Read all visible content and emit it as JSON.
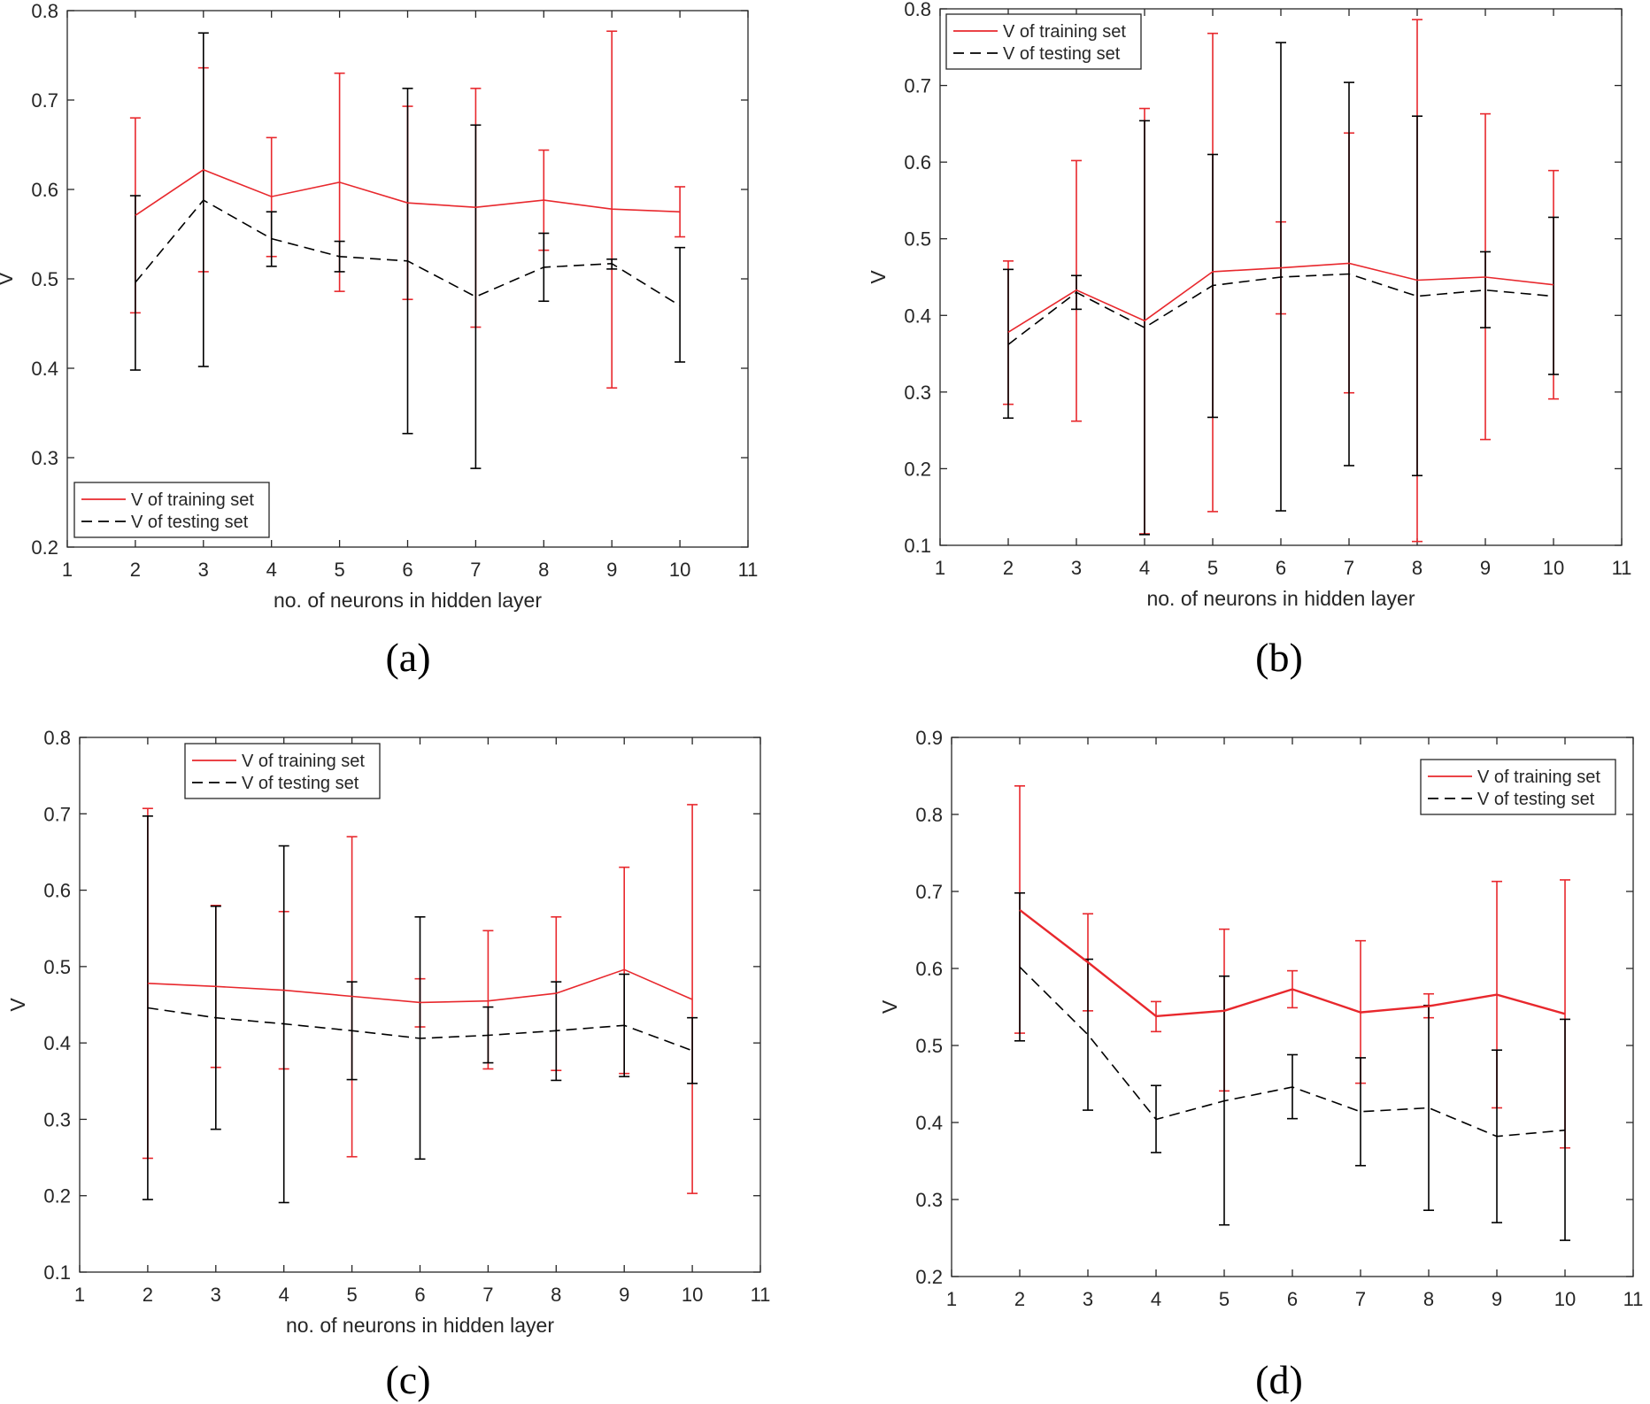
{
  "figure": {
    "panels": [
      {
        "caption": "(a)"
      },
      {
        "caption": "(b)"
      },
      {
        "caption": "(c)"
      },
      {
        "caption": "(d)"
      }
    ]
  },
  "colors": {
    "training": "#e8282d",
    "testing": "#000000",
    "axes": "#262626"
  },
  "chart_data": [
    {
      "type": "line",
      "caption": "(a)",
      "xlabel": "no. of neurons in hidden layer",
      "ylabel": "V",
      "xlim": [
        1,
        11
      ],
      "ylim": [
        0.2,
        0.8
      ],
      "xticks": [
        "1",
        "2",
        "3",
        "4",
        "5",
        "6",
        "7",
        "8",
        "9",
        "10",
        "11"
      ],
      "yticks": [
        "0.2",
        "0.3",
        "0.4",
        "0.5",
        "0.6",
        "0.7",
        "0.8"
      ],
      "legend": {
        "position": "bottom-left",
        "entries": [
          "V of training set",
          "V of testing set"
        ]
      },
      "x": [
        2,
        3,
        4,
        5,
        6,
        7,
        8,
        9,
        10
      ],
      "series": [
        {
          "name": "V of training set",
          "style": "solid",
          "values": [
            0.571,
            0.622,
            0.592,
            0.608,
            0.585,
            0.58,
            0.588,
            0.578,
            0.575
          ],
          "err_low": [
            0.462,
            0.508,
            0.525,
            0.486,
            0.477,
            0.446,
            0.532,
            0.378,
            0.547
          ],
          "err_high": [
            0.68,
            0.736,
            0.658,
            0.73,
            0.693,
            0.713,
            0.644,
            0.777,
            0.603
          ]
        },
        {
          "name": "V of testing set",
          "style": "dashed",
          "values": [
            0.496,
            0.588,
            0.545,
            0.525,
            0.52,
            0.48,
            0.513,
            0.517,
            0.47
          ],
          "err_low": [
            0.398,
            0.402,
            0.514,
            0.508,
            0.327,
            0.288,
            0.475,
            0.511,
            0.407
          ],
          "err_high": [
            0.593,
            0.775,
            0.575,
            0.542,
            0.713,
            0.672,
            0.551,
            0.522,
            0.535
          ]
        }
      ]
    },
    {
      "type": "line",
      "caption": "(b)",
      "xlabel": "no. of neurons in hidden layer",
      "ylabel": "V",
      "xlim": [
        1,
        11
      ],
      "ylim": [
        0.1,
        0.8
      ],
      "xticks": [
        "1",
        "2",
        "3",
        "4",
        "5",
        "6",
        "7",
        "8",
        "9",
        "10",
        "11"
      ],
      "yticks": [
        "0.1",
        "0.2",
        "0.3",
        "0.4",
        "0.5",
        "0.6",
        "0.7",
        "0.8"
      ],
      "legend": {
        "position": "top-left",
        "entries": [
          "V of training set",
          "V of testing set"
        ]
      },
      "x": [
        2,
        3,
        4,
        5,
        6,
        7,
        8,
        9,
        10
      ],
      "series": [
        {
          "name": "V of training set",
          "style": "solid",
          "values": [
            0.378,
            0.433,
            0.393,
            0.457,
            0.462,
            0.468,
            0.446,
            0.45,
            0.44
          ],
          "err_low": [
            0.284,
            0.262,
            0.115,
            0.144,
            0.402,
            0.299,
            0.105,
            0.238,
            0.291
          ],
          "err_high": [
            0.471,
            0.602,
            0.67,
            0.768,
            0.522,
            0.638,
            0.786,
            0.663,
            0.589
          ]
        },
        {
          "name": "V of testing set",
          "style": "dashed",
          "values": [
            0.362,
            0.43,
            0.384,
            0.439,
            0.45,
            0.454,
            0.425,
            0.433,
            0.425
          ],
          "err_low": [
            0.266,
            0.408,
            0.114,
            0.267,
            0.145,
            0.204,
            0.191,
            0.384,
            0.323
          ],
          "err_high": [
            0.46,
            0.452,
            0.654,
            0.61,
            0.756,
            0.704,
            0.66,
            0.483,
            0.528
          ]
        }
      ]
    },
    {
      "type": "line",
      "caption": "(c)",
      "xlabel": "no. of neurons in hidden layer",
      "ylabel": "V",
      "xlim": [
        1,
        11
      ],
      "ylim": [
        0.1,
        0.8
      ],
      "xticks": [
        "1",
        "2",
        "3",
        "4",
        "5",
        "6",
        "7",
        "8",
        "9",
        "10",
        "11"
      ],
      "yticks": [
        "0.1",
        "0.2",
        "0.3",
        "0.4",
        "0.5",
        "0.6",
        "0.7",
        "0.8"
      ],
      "legend": {
        "position": "top-left",
        "entries": [
          "V of training set",
          "V of testing set"
        ]
      },
      "x": [
        2,
        3,
        4,
        5,
        6,
        7,
        8,
        9,
        10
      ],
      "series": [
        {
          "name": "V of training set",
          "style": "solid",
          "values": [
            0.478,
            0.474,
            0.469,
            0.461,
            0.453,
            0.455,
            0.465,
            0.496,
            0.457
          ],
          "err_low": [
            0.249,
            0.368,
            0.366,
            0.251,
            0.421,
            0.366,
            0.364,
            0.36,
            0.203
          ],
          "err_high": [
            0.707,
            0.58,
            0.572,
            0.67,
            0.484,
            0.547,
            0.565,
            0.63,
            0.712
          ]
        },
        {
          "name": "V of testing set",
          "style": "dashed",
          "values": [
            0.446,
            0.433,
            0.425,
            0.416,
            0.406,
            0.41,
            0.416,
            0.423,
            0.39
          ],
          "err_low": [
            0.195,
            0.287,
            0.191,
            0.352,
            0.248,
            0.374,
            0.351,
            0.356,
            0.347
          ],
          "err_high": [
            0.697,
            0.579,
            0.658,
            0.48,
            0.565,
            0.447,
            0.48,
            0.49,
            0.433
          ]
        }
      ]
    },
    {
      "type": "line",
      "caption": "(d)",
      "xlabel": "",
      "ylabel": "V",
      "xlim": [
        1,
        11
      ],
      "ylim": [
        0.2,
        0.9
      ],
      "xticks": [
        "1",
        "2",
        "3",
        "4",
        "5",
        "6",
        "7",
        "8",
        "9",
        "10",
        "11"
      ],
      "yticks": [
        "0.2",
        "0.3",
        "0.4",
        "0.5",
        "0.6",
        "0.7",
        "0.8",
        "0.9"
      ],
      "legend": {
        "position": "top-right",
        "entries": [
          "V of training set",
          "V of testing set"
        ]
      },
      "x": [
        2,
        3,
        4,
        5,
        6,
        7,
        8,
        9,
        10
      ],
      "series": [
        {
          "name": "V of training set",
          "style": "solid",
          "values": [
            0.676,
            0.608,
            0.538,
            0.545,
            0.573,
            0.543,
            0.551,
            0.566,
            0.541
          ],
          "err_low": [
            0.516,
            0.545,
            0.518,
            0.441,
            0.549,
            0.451,
            0.536,
            0.419,
            0.367
          ],
          "err_high": [
            0.837,
            0.671,
            0.557,
            0.651,
            0.597,
            0.636,
            0.567,
            0.713,
            0.715
          ]
        },
        {
          "name": "V of testing set",
          "style": "dashed",
          "values": [
            0.602,
            0.514,
            0.404,
            0.428,
            0.446,
            0.414,
            0.419,
            0.382,
            0.39
          ],
          "err_low": [
            0.506,
            0.416,
            0.361,
            0.267,
            0.405,
            0.344,
            0.286,
            0.27,
            0.247
          ],
          "err_high": [
            0.698,
            0.612,
            0.448,
            0.59,
            0.488,
            0.484,
            0.552,
            0.494,
            0.534
          ]
        }
      ]
    }
  ]
}
